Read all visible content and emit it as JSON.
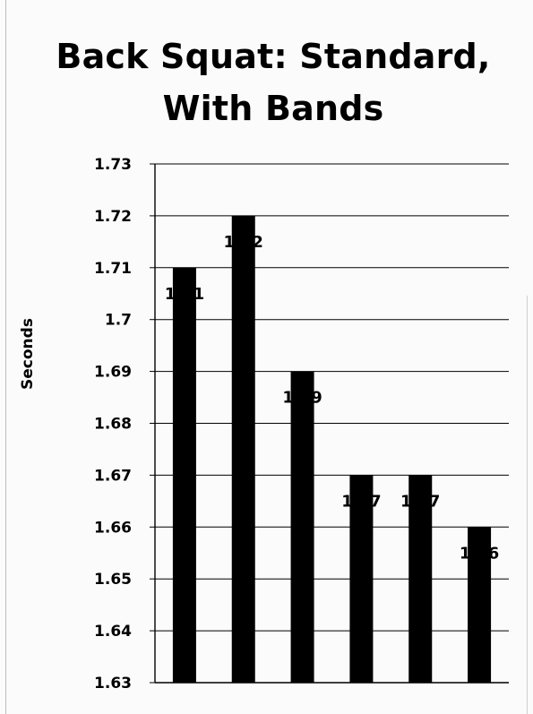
{
  "chart_data": {
    "type": "bar",
    "title_lines": [
      "Back Squat: Standard,",
      "With Bands"
    ],
    "xlabel": "",
    "ylabel": "Seconds",
    "ylim": [
      1.63,
      1.73
    ],
    "yticks": [
      "1.63",
      "1.64",
      "1.65",
      "1.66",
      "1.67",
      "1.68",
      "1.69",
      "1.7",
      "1.71",
      "1.72",
      "1.73"
    ],
    "grid": true,
    "categories": [
      "",
      "",
      "",
      "",
      "",
      ""
    ],
    "values": [
      1.71,
      1.72,
      1.69,
      1.67,
      1.67,
      1.66
    ],
    "data_labels": [
      "1.71",
      "1.72",
      "1.69",
      "1.67",
      "1.67",
      "1.66"
    ],
    "bar_color": "#000000",
    "gridline_color": "#000000"
  }
}
